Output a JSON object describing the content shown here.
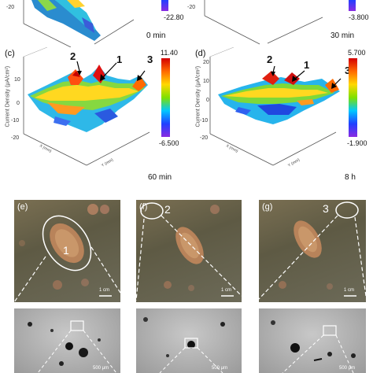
{
  "panels_top": {
    "a": {
      "time": "0 min",
      "cbar_min": "-22.80",
      "ticks": [
        "-20"
      ]
    },
    "b": {
      "time": "30 min",
      "cbar_min": "-3.800",
      "ticks": [
        "-20"
      ]
    }
  },
  "panels_mid": {
    "c": {
      "letter": "(c)",
      "time": "60 min",
      "cbar_max": "11.40",
      "cbar_min": "-6.500",
      "ylabel": "Current Density (μA/cm²)",
      "ticks": [
        "10",
        "0",
        "-10",
        "-20"
      ],
      "peaks": [
        "2",
        "1",
        "3"
      ]
    },
    "d": {
      "letter": "(d)",
      "time": "8 h",
      "cbar_max": "5.700",
      "cbar_min": "-1.900",
      "ylabel": "Current Density (μA/cm²)",
      "ticks": [
        "20",
        "10",
        "0",
        "-10",
        "-20"
      ],
      "peaks": [
        "2",
        "1",
        "3"
      ]
    }
  },
  "photos": {
    "e": {
      "letter": "(e)",
      "marker": "1",
      "scale": "1 cm"
    },
    "f": {
      "letter": "(f)",
      "marker": "2",
      "scale": "1 cm"
    },
    "g": {
      "letter": "(g)",
      "marker": "3",
      "scale": "1 cm"
    }
  },
  "micro_scales": {
    "e": "500 μm",
    "f": "500 μm",
    "g": "500 μm"
  },
  "colors": {
    "cbar": [
      "#d40000",
      "#ff6a00",
      "#ffd800",
      "#7fe000",
      "#00c8ff",
      "#2040ff",
      "#8a2be2"
    ]
  }
}
